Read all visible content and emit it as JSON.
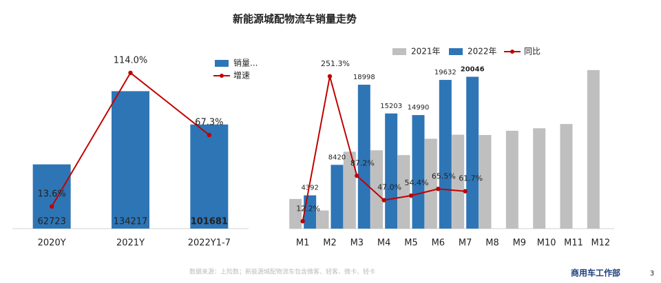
{
  "slide": {
    "title": "新能源城配物流车销量走势",
    "source": "数据来源：上险数；新能源城配物流车包含微客、轻客、微卡、轻卡",
    "brand": "商用车工作部",
    "page": "3"
  },
  "chart_data": [
    {
      "type": "bar",
      "categories": [
        "2020Y",
        "2021Y",
        "2022Y1-7"
      ],
      "legend": "right",
      "ylim": [
        0,
        156000
      ],
      "y2lim": [
        -3,
        117
      ],
      "series": [
        {
          "name": "销量...",
          "color": "#2e75b6",
          "values": [
            62723,
            134217,
            101681
          ]
        },
        {
          "name": "增速",
          "color": "#c00000",
          "type": "line",
          "axis": "y2",
          "values": [
            13.6,
            114.0,
            67.3
          ],
          "value_labels": [
            "13.6%",
            "114.0%",
            "67.3%"
          ]
        }
      ]
    },
    {
      "type": "bar",
      "categories": [
        "M1",
        "M2",
        "M3",
        "M4",
        "M5",
        "M6",
        "M7",
        "M8",
        "M9",
        "M10",
        "M11",
        "M12"
      ],
      "legend": "top",
      "ylim": [
        0,
        22000
      ],
      "y2lim": [
        0,
        275
      ],
      "series": [
        {
          "name": "2021年",
          "color": "#bfbfbf",
          "values": [
            3914,
            2397,
            10149,
            10342,
            9709,
            11862,
            12397,
            12360,
            12920,
            13250,
            13810,
            20930
          ]
        },
        {
          "name": "2022年",
          "color": "#2e75b6",
          "values": [
            4392,
            8420,
            18998,
            15203,
            14990,
            19632,
            20046,
            null,
            null,
            null,
            null,
            null
          ],
          "labeled": true
        },
        {
          "name": "同比",
          "color": "#c00000",
          "type": "line",
          "axis": "y2",
          "values": [
            12.2,
            251.3,
            87.2,
            47.0,
            54.4,
            65.5,
            61.7,
            null,
            null,
            null,
            null,
            null
          ],
          "value_labels": [
            "12.2%",
            "251.3%",
            "87.2%",
            "47.0%",
            "54.4%",
            "65.5%",
            "61.7%",
            null,
            null,
            null,
            null,
            null
          ]
        }
      ]
    }
  ]
}
